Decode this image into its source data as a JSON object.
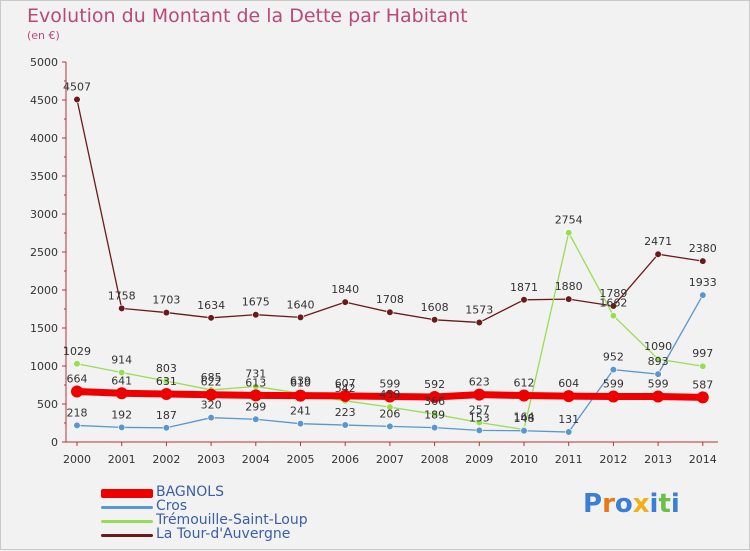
{
  "title": "Evolution du Montant de la Dette par Habitant",
  "subtitle": "(en €)",
  "logo_text": "Proxiti",
  "chart_data": {
    "type": "line",
    "x": [
      "2000",
      "2001",
      "2002",
      "2003",
      "2004",
      "2005",
      "2006",
      "2007",
      "2008",
      "2009",
      "2010",
      "2011",
      "2012",
      "2013",
      "2014"
    ],
    "ylim": [
      0,
      5000
    ],
    "yticks": [
      0,
      500,
      1000,
      1500,
      2000,
      2500,
      3000,
      3500,
      4000,
      4500,
      5000
    ],
    "grid": false,
    "legend_position": "bottom-left",
    "series": [
      {
        "name": "BAGNOLS",
        "color": "#ee0000",
        "values": [
          664,
          641,
          631,
          622,
          613,
          610,
          607,
          599,
          592,
          623,
          612,
          604,
          599,
          599,
          587
        ]
      },
      {
        "name": "Cros",
        "color": "#5a96cf",
        "values": [
          218,
          192,
          187,
          320,
          299,
          241,
          223,
          206,
          189,
          153,
          148,
          131,
          952,
          893,
          1933
        ]
      },
      {
        "name": "Trémouille-Saint-Loup",
        "color": "#99dd55",
        "values": [
          1029,
          914,
          803,
          685,
          731,
          639,
          542,
          459,
          366,
          257,
          164,
          2754,
          1662,
          1090,
          997
        ]
      },
      {
        "name": "La Tour-d'Auvergne",
        "color": "#6b1a1a",
        "values": [
          4507,
          1758,
          1703,
          1634,
          1675,
          1640,
          1840,
          1708,
          1608,
          1573,
          1871,
          1880,
          1789,
          2471,
          2380
        ]
      }
    ]
  }
}
